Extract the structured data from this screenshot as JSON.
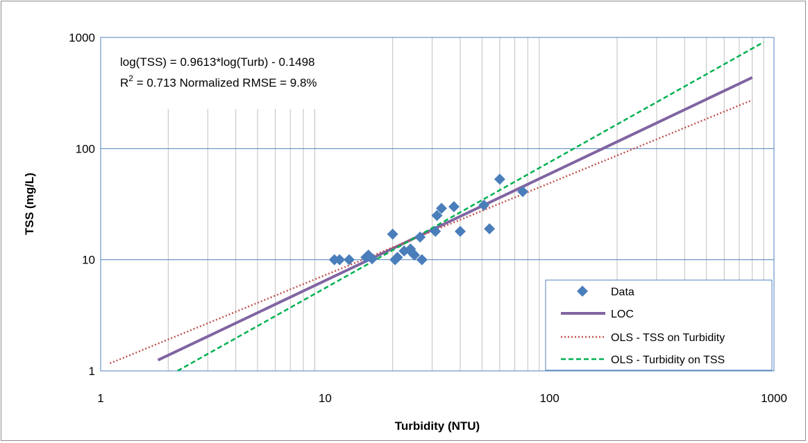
{
  "chart_data": {
    "type": "scatter",
    "xlabel": "Turbidity (NTU)",
    "ylabel": "TSS (mg/L)",
    "x_scale": "log",
    "y_scale": "log",
    "xlim": [
      1,
      1000
    ],
    "ylim": [
      1,
      1000
    ],
    "x_ticks": [
      "1",
      "10",
      "100",
      "1000"
    ],
    "y_ticks": [
      "1",
      "10",
      "100",
      "1000"
    ],
    "grid": "major horizontal and minor vertical gridlines",
    "legend_position": "bottom-right",
    "annotation": {
      "equation": "log(TSS) = 0.9613*log(Turb) - 0.1498",
      "r_label": "R",
      "r_sup": "2",
      "stats": " = 0.713  Normalized RMSE = 9.8%"
    },
    "series": [
      {
        "name": "Data",
        "kind": "points",
        "marker": "diamond",
        "color": "#4a7ebb",
        "points": [
          [
            11,
            10
          ],
          [
            11.6,
            10
          ],
          [
            12.8,
            10
          ],
          [
            15.2,
            10.5
          ],
          [
            15.6,
            11
          ],
          [
            16.2,
            10.2
          ],
          [
            20,
            17
          ],
          [
            20.5,
            10
          ],
          [
            21,
            10.5
          ],
          [
            22.5,
            12
          ],
          [
            24,
            12.5
          ],
          [
            24.5,
            11.5
          ],
          [
            25,
            11
          ],
          [
            26.5,
            16
          ],
          [
            27,
            10
          ],
          [
            31,
            18
          ],
          [
            31.5,
            25
          ],
          [
            33,
            29
          ],
          [
            37.5,
            30
          ],
          [
            40,
            18
          ],
          [
            51,
            31
          ],
          [
            54,
            19
          ],
          [
            60,
            53
          ],
          [
            76,
            41
          ]
        ]
      },
      {
        "name": "LOC",
        "kind": "line",
        "color": "#8064a2",
        "dash": "solid",
        "x": [
          1.8,
          800
        ],
        "y": [
          1.25,
          436
        ]
      },
      {
        "name": "OLS - TSS on Turbidity",
        "kind": "line",
        "color": "#c0504d",
        "dash": "dotted",
        "x": [
          1.1,
          800
        ],
        "y": [
          1.17,
          273
        ]
      },
      {
        "name": "OLS - Turbidity on TSS",
        "kind": "line",
        "color": "#00b050",
        "dash": "dashed",
        "x": [
          2.2,
          900
        ],
        "y": [
          1.0,
          908
        ]
      }
    ]
  }
}
